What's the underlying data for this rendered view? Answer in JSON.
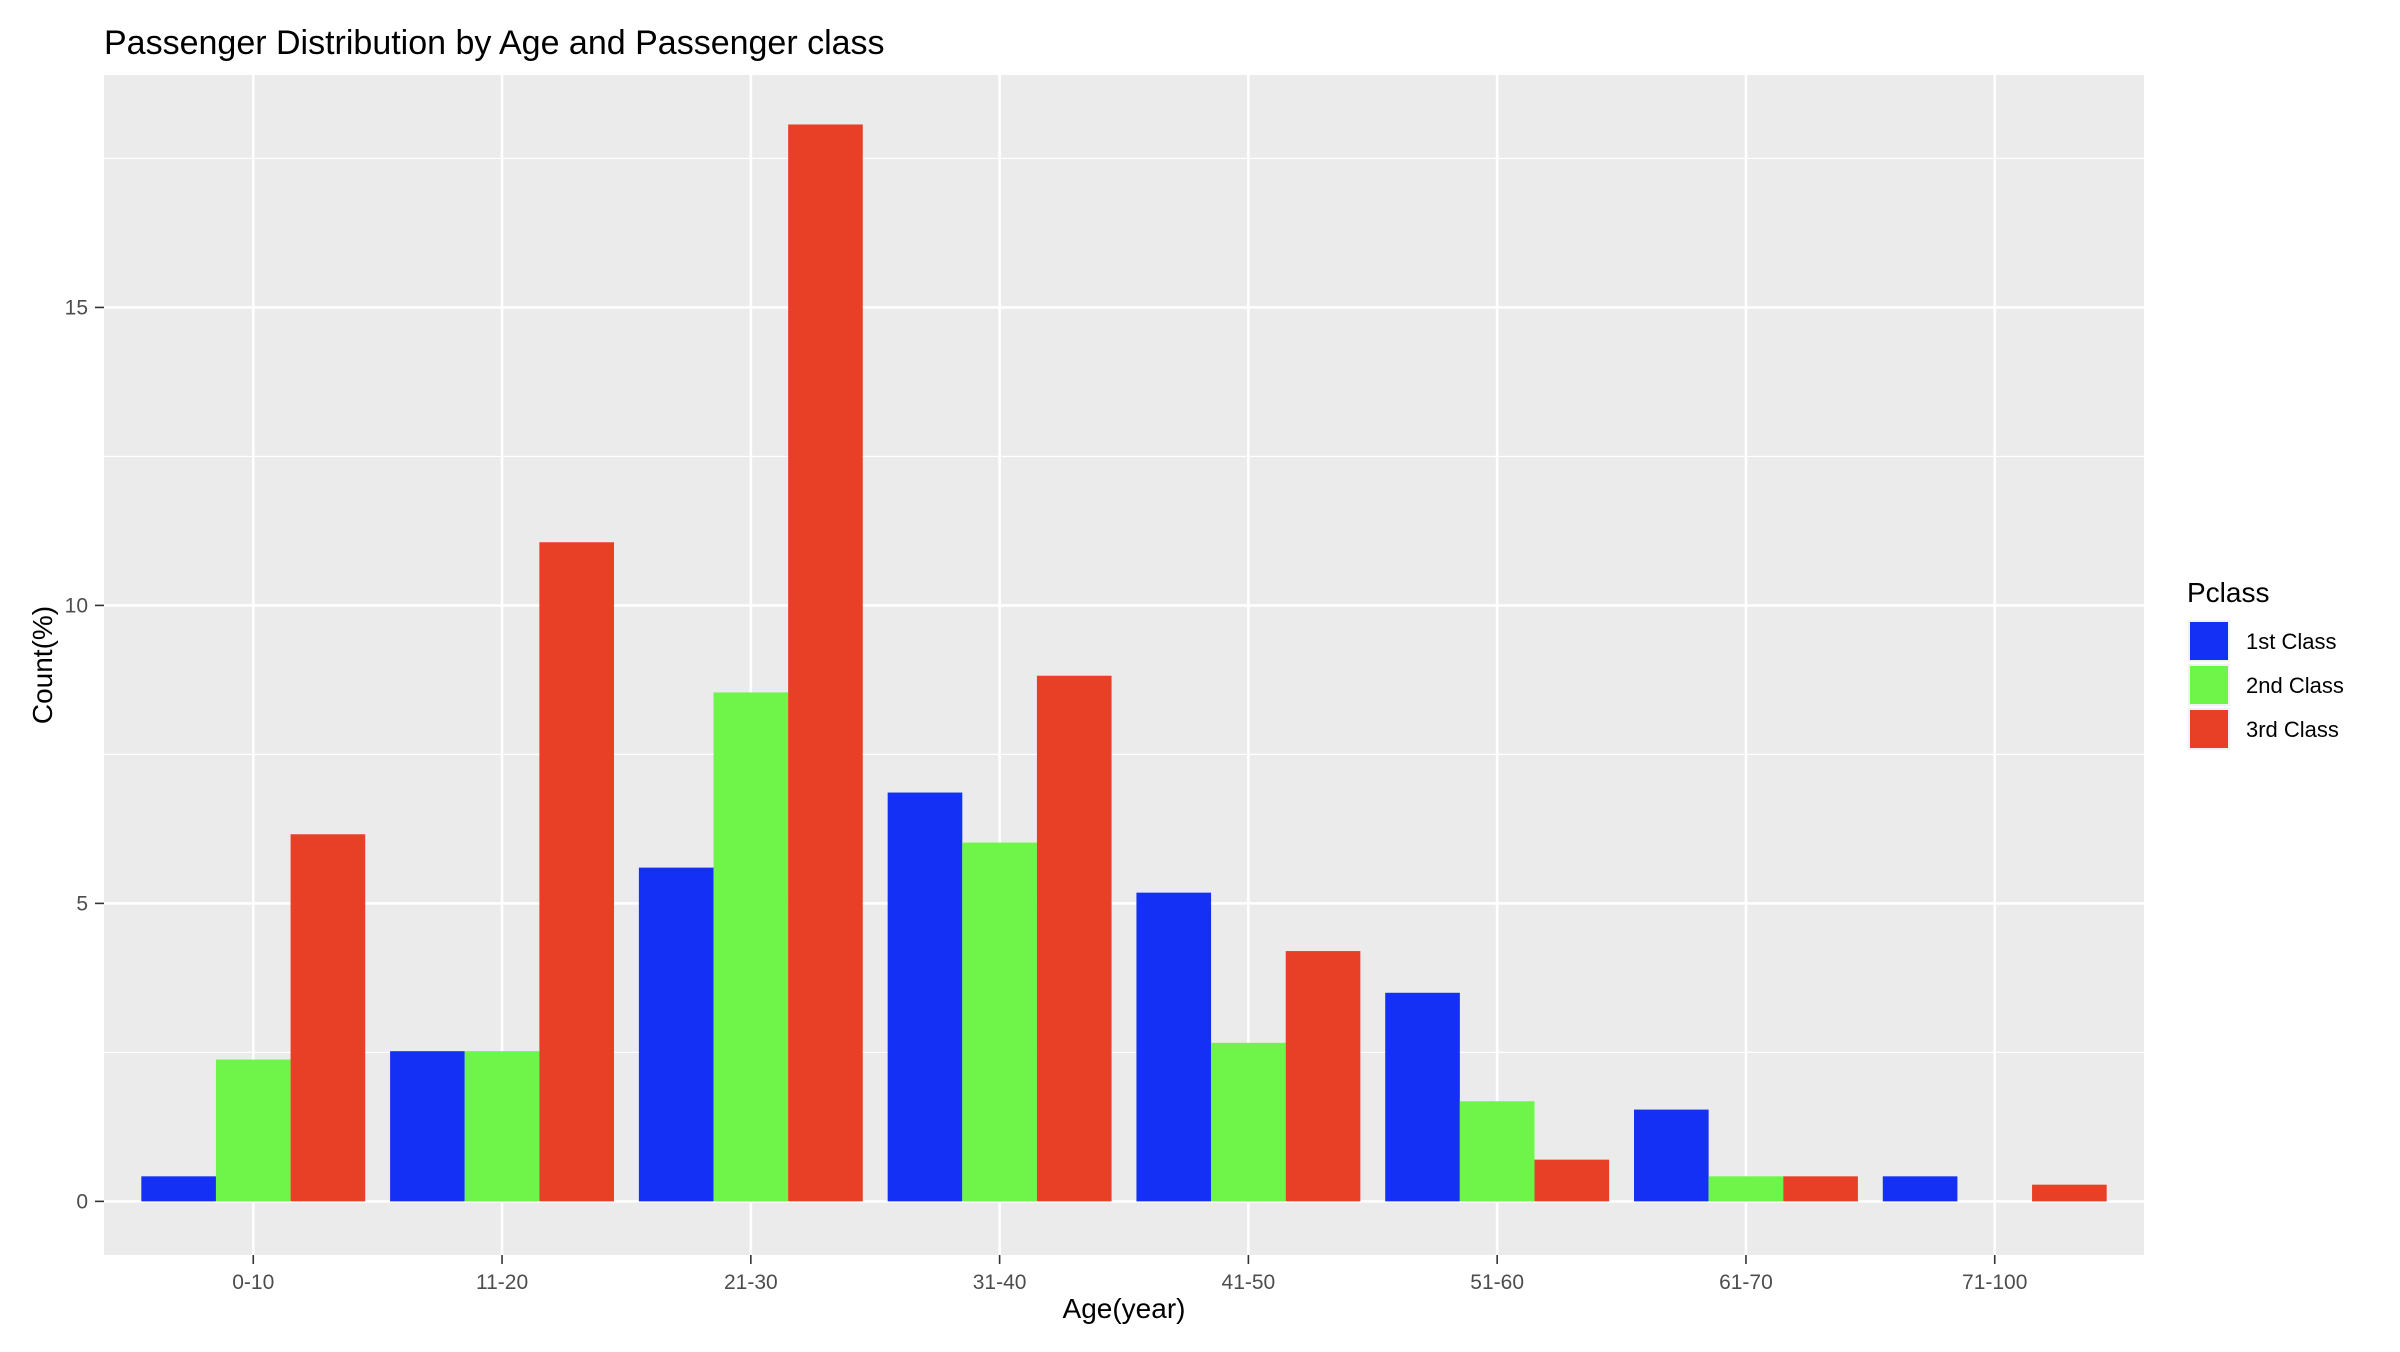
{
  "chart_data": {
    "type": "bar",
    "title": "Passenger Distribution by Age and Passenger class",
    "xlabel": "Age(year)",
    "ylabel": "Count(%)",
    "categories": [
      "0-10",
      "11-20",
      "21-30",
      "31-40",
      "41-50",
      "51-60",
      "61-70",
      "71-100"
    ],
    "ylim": [
      -0.9,
      18.9
    ],
    "yticks": [
      0,
      5,
      10,
      15
    ],
    "grid": true,
    "legend": {
      "title": "Pclass",
      "placement": "right"
    },
    "series": [
      {
        "name": "1st Class",
        "color": "#1530F5",
        "values": [
          0.42,
          2.52,
          5.6,
          6.86,
          5.18,
          3.5,
          1.54,
          0.42
        ]
      },
      {
        "name": "2nd Class",
        "color": "#6FF54A",
        "values": [
          2.38,
          2.52,
          8.54,
          6.02,
          2.66,
          1.68,
          0.42,
          null
        ]
      },
      {
        "name": "3rd Class",
        "color": "#E84026",
        "values": [
          6.16,
          11.06,
          18.07,
          8.82,
          4.2,
          0.7,
          0.42,
          0.28
        ]
      }
    ]
  }
}
